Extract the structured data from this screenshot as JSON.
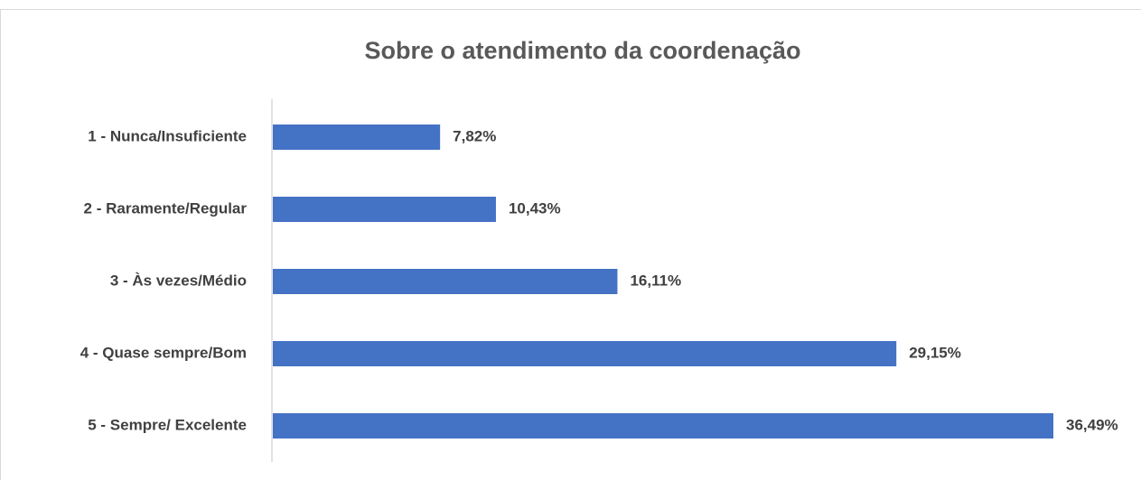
{
  "chart_data": {
    "type": "bar",
    "orientation": "horizontal",
    "title": "Sobre o atendimento da coordenação",
    "categories": [
      "1 - Nunca/Insuficiente",
      "2 - Raramente/Regular",
      "3 - Às vezes/Médio",
      "4 - Quase sempre/Bom",
      "5 - Sempre/ Excelente"
    ],
    "values": [
      7.82,
      10.43,
      16.11,
      29.15,
      36.49
    ],
    "value_labels": [
      "7,82%",
      "10,43%",
      "16,11%",
      "29,15%",
      "36,49%"
    ],
    "color": "#4472c4"
  }
}
